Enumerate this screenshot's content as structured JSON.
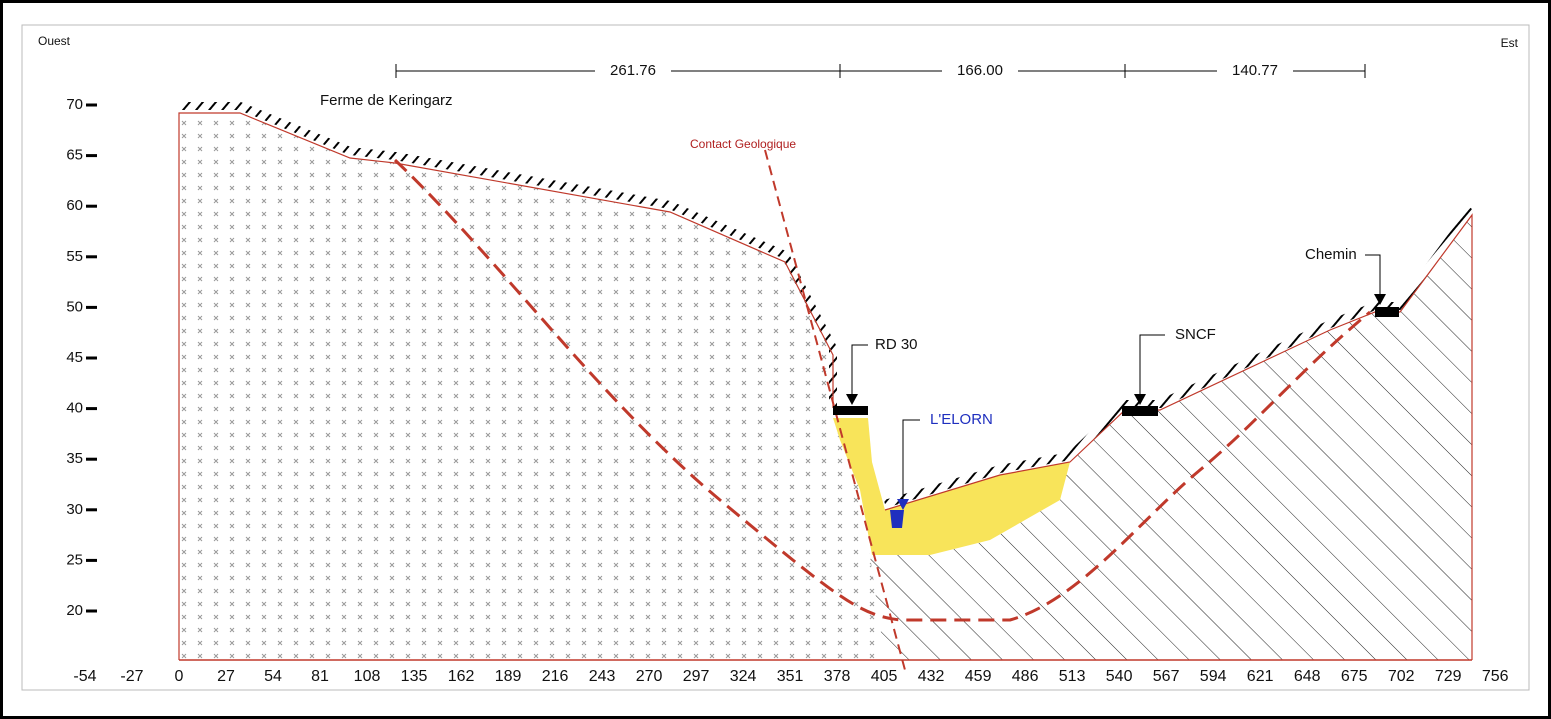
{
  "labels": {
    "west": "Ouest",
    "east": "Est",
    "farm": "Ferme de Keringarz",
    "contact": "Contact Geologique",
    "rd30": "RD 30",
    "river": "L'ELORN",
    "sncf": "SNCF",
    "chemin": "Chemin"
  },
  "dimensions": [
    "261.76",
    "166.00",
    "140.77"
  ],
  "x_axis": {
    "ticks": [
      -54,
      -27,
      0,
      27,
      54,
      81,
      108,
      135,
      162,
      189,
      216,
      243,
      270,
      297,
      324,
      351,
      378,
      405,
      432,
      459,
      486,
      513,
      540,
      567,
      594,
      621,
      648,
      675,
      702,
      729,
      756
    ]
  },
  "y_axis": {
    "ticks": [
      20,
      25,
      30,
      35,
      40,
      45,
      50,
      55,
      60,
      65,
      70
    ]
  }
}
